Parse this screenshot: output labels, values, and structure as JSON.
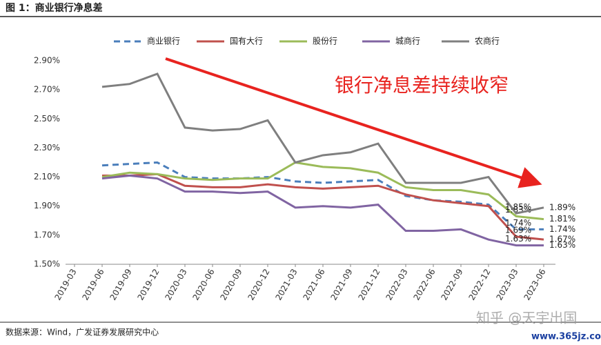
{
  "chart_data": {
    "type": "line",
    "title": "图 1：商业银行净息差",
    "annotation": "银行净息差持续收窄",
    "source": "数据来源：Wind，广发证券发展研究中心",
    "watermark": "知乎 @天宇出国",
    "site": "www.365jz.com",
    "categories": [
      "2019-03",
      "2019-06",
      "2019-09",
      "2019-12",
      "2020-03",
      "2020-06",
      "2020-09",
      "2020-12",
      "2021-03",
      "2021-06",
      "2021-09",
      "2021-12",
      "2022-03",
      "2022-06",
      "2022-09",
      "2022-12",
      "2023-03",
      "2023-06"
    ],
    "ylim": [
      1.5,
      2.9
    ],
    "yticks": [
      {
        "value": 1.5,
        "label": "1.50%"
      },
      {
        "value": 1.7,
        "label": "1.70%"
      },
      {
        "value": 1.9,
        "label": "1.90%"
      },
      {
        "value": 2.1,
        "label": "2.10%"
      },
      {
        "value": 2.3,
        "label": "2.30%"
      },
      {
        "value": 2.5,
        "label": "2.50%"
      },
      {
        "value": 2.7,
        "label": "2.70%"
      },
      {
        "value": 2.9,
        "label": "2.90%"
      }
    ],
    "grid": false,
    "legend": "top",
    "series": [
      {
        "name": "商业银行",
        "color": "#4a7ebb",
        "dashed": true,
        "values": [
          null,
          2.18,
          2.19,
          2.2,
          2.1,
          2.09,
          2.09,
          2.1,
          2.07,
          2.06,
          2.07,
          2.08,
          1.97,
          1.94,
          1.93,
          1.91,
          1.74,
          1.74
        ],
        "value_labels": [
          null,
          null,
          null,
          null,
          null,
          null,
          null,
          null,
          null,
          null,
          null,
          null,
          null,
          null,
          null,
          null,
          "1.74%",
          "1.74%"
        ]
      },
      {
        "name": "国有大行",
        "color": "#c0504d",
        "dashed": false,
        "values": [
          null,
          2.11,
          2.11,
          2.12,
          2.04,
          2.03,
          2.03,
          2.05,
          2.03,
          2.02,
          2.03,
          2.04,
          1.98,
          1.94,
          1.92,
          1.9,
          1.69,
          1.67
        ],
        "value_labels": [
          null,
          null,
          null,
          null,
          null,
          null,
          null,
          null,
          null,
          null,
          null,
          null,
          null,
          null,
          null,
          null,
          "1.69%",
          "1.67%"
        ]
      },
      {
        "name": "股份行",
        "color": "#9bbb59",
        "dashed": false,
        "values": [
          null,
          2.1,
          2.13,
          2.12,
          2.09,
          2.08,
          2.09,
          2.09,
          2.2,
          2.17,
          2.16,
          2.13,
          2.03,
          2.01,
          2.01,
          1.98,
          1.83,
          1.81
        ],
        "value_labels": [
          null,
          null,
          null,
          null,
          null,
          null,
          null,
          null,
          null,
          null,
          null,
          null,
          null,
          null,
          null,
          null,
          "1.83%",
          "1.81%"
        ]
      },
      {
        "name": "城商行",
        "color": "#8064a2",
        "dashed": false,
        "values": [
          null,
          2.09,
          2.11,
          2.09,
          2.0,
          2.0,
          1.99,
          2.0,
          1.89,
          1.9,
          1.89,
          1.91,
          1.73,
          1.73,
          1.74,
          1.67,
          1.63,
          1.63
        ],
        "value_labels": [
          null,
          null,
          null,
          null,
          null,
          null,
          null,
          null,
          null,
          null,
          null,
          null,
          null,
          null,
          null,
          null,
          "1.63%",
          "1.63%"
        ]
      },
      {
        "name": "农商行",
        "color": "#7f7f7f",
        "dashed": false,
        "values": [
          null,
          2.72,
          2.74,
          2.81,
          2.44,
          2.42,
          2.43,
          2.49,
          2.2,
          2.25,
          2.27,
          2.33,
          2.06,
          2.06,
          2.06,
          2.1,
          1.85,
          1.89
        ],
        "value_labels": [
          null,
          null,
          null,
          null,
          null,
          null,
          null,
          null,
          null,
          null,
          null,
          null,
          null,
          null,
          null,
          null,
          "1.85%",
          "1.89%"
        ]
      }
    ]
  }
}
